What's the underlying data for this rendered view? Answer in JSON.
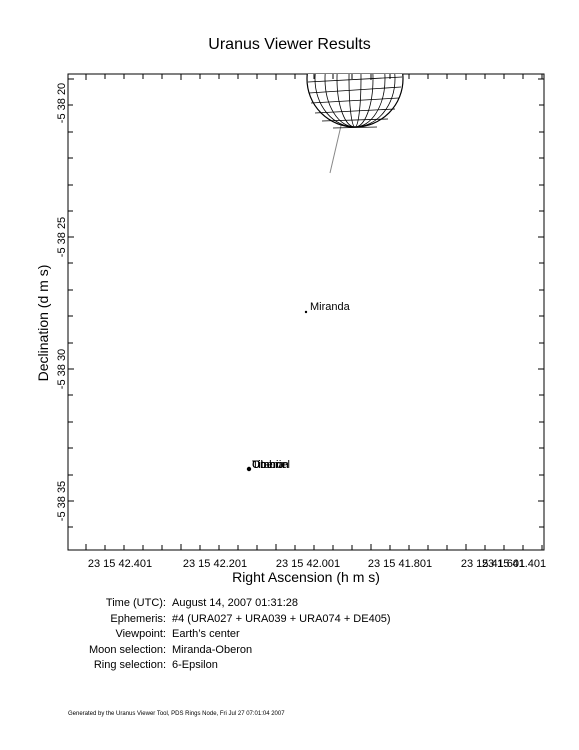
{
  "title": "Uranus Viewer Results",
  "chart_data": {
    "type": "scatter",
    "title": "Uranus Viewer Results",
    "xlabel": "Right Ascension (h m s)",
    "ylabel": "Declination (d m s)",
    "x_ticks": [
      "23 15 42.401",
      "23 15 42.201",
      "23 15 42.001",
      "23 15 41.801",
      "23 15 41.601",
      "23 15 41.401"
    ],
    "y_ticks": [
      "-5 38 20",
      "-5 38 25",
      "-5 38 30",
      "-5 38 35"
    ],
    "bodies": [
      {
        "name": "Miranda",
        "ra": "23 15 41.980",
        "dec": "-5 38 27.8"
      },
      {
        "name": "Umbriel",
        "ra": "23 15 42.140",
        "dec": "-5 38 33.8"
      },
      {
        "name": "Oberon",
        "ra": "23 15 42.140",
        "dec": "-5 38 33.8"
      },
      {
        "name": "Titania",
        "ra": "23 15 42.140",
        "dec": "-5 38 33.8"
      }
    ],
    "planet": {
      "name": "Uranus",
      "note": "partially visible at top edge with rings"
    }
  },
  "info": [
    {
      "label": "Time (UTC):",
      "value": "August 14, 2007 01:31:28"
    },
    {
      "label": "Ephemeris:",
      "value": "#4 (URA027 + URA039 + URA074 + DE405)"
    },
    {
      "label": "Viewpoint:",
      "value": "Earth’s center"
    },
    {
      "label": "Moon selection:",
      "value": "Miranda-Oberon"
    },
    {
      "label": "Ring selection:",
      "value": "6-Epsilon"
    }
  ],
  "footer": "Generated by the Uranus Viewer Tool, PDS Rings Node, Fri Jul 27 07:01:04 2007"
}
